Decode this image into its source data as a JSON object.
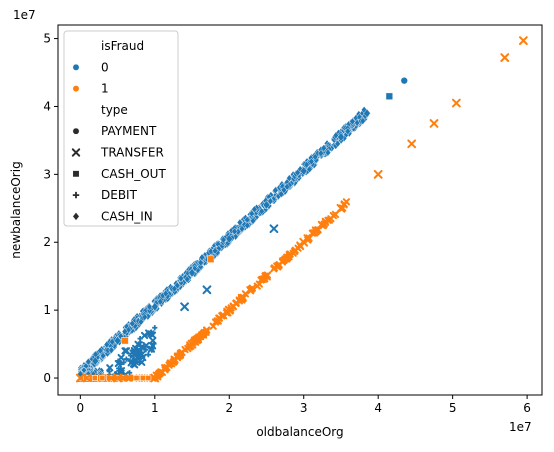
{
  "chart_data": {
    "type": "scatter",
    "xlabel": "oldbalanceOrg",
    "ylabel": "newbalanceOrig",
    "x_offset_label": "1e7",
    "y_offset_label": "1e7",
    "xlim": [
      -0.3,
      6.2
    ],
    "ylim": [
      -0.25,
      5.2
    ],
    "x_ticks": [
      0,
      1,
      2,
      3,
      4,
      5,
      6
    ],
    "y_ticks": [
      0,
      1,
      2,
      3,
      4,
      5
    ],
    "grid": false,
    "legend": {
      "placement": "top-left",
      "hue_title": "isFraud",
      "hue_entries": [
        {
          "label": "0",
          "color": "#1f77b4"
        },
        {
          "label": "1",
          "color": "#ff7f0e"
        }
      ],
      "style_title": "type",
      "style_entries": [
        {
          "label": "PAYMENT",
          "marker": "circle"
        },
        {
          "label": "TRANSFER",
          "marker": "x"
        },
        {
          "label": "CASH_OUT",
          "marker": "square"
        },
        {
          "label": "DEBIT",
          "marker": "plus"
        },
        {
          "label": "CASH_IN",
          "marker": "diamond"
        }
      ]
    },
    "series": [
      {
        "isFraud": "0",
        "color": "#1f77b4",
        "x": [
          0,
          0.2,
          0.5,
          1.0,
          1.5,
          2.0,
          2.5,
          3.0,
          3.5,
          3.85,
          1.4,
          1.7,
          2.6,
          4.15,
          4.35
        ],
        "y": [
          0.05,
          0.25,
          0.55,
          1.05,
          1.55,
          2.05,
          2.55,
          3.05,
          3.55,
          3.9,
          1.05,
          1.3,
          2.2,
          4.15,
          4.38
        ],
        "marker": [
          "diamond",
          "diamond",
          "diamond",
          "diamond",
          "diamond",
          "diamond",
          "diamond",
          "diamond",
          "diamond",
          "diamond",
          "x",
          "x",
          "x",
          "square",
          "circle"
        ]
      },
      {
        "isFraud": "1",
        "color": "#ff7f0e",
        "x": [
          0,
          0.5,
          1.0,
          1.03,
          1.5,
          2.0,
          2.5,
          3.0,
          3.5,
          4.0,
          4.45,
          4.75,
          5.05,
          5.7,
          5.95,
          0.6,
          1.75
        ],
        "y": [
          0,
          0,
          0,
          0.03,
          0.5,
          1.0,
          1.5,
          2.0,
          2.5,
          3.0,
          3.45,
          3.75,
          4.05,
          4.72,
          4.97,
          0.55,
          1.75
        ],
        "marker": [
          "x",
          "x",
          "x",
          "x",
          "x",
          "x",
          "x",
          "x",
          "x",
          "x",
          "x",
          "x",
          "x",
          "x",
          "x",
          "square",
          "square"
        ]
      }
    ]
  }
}
